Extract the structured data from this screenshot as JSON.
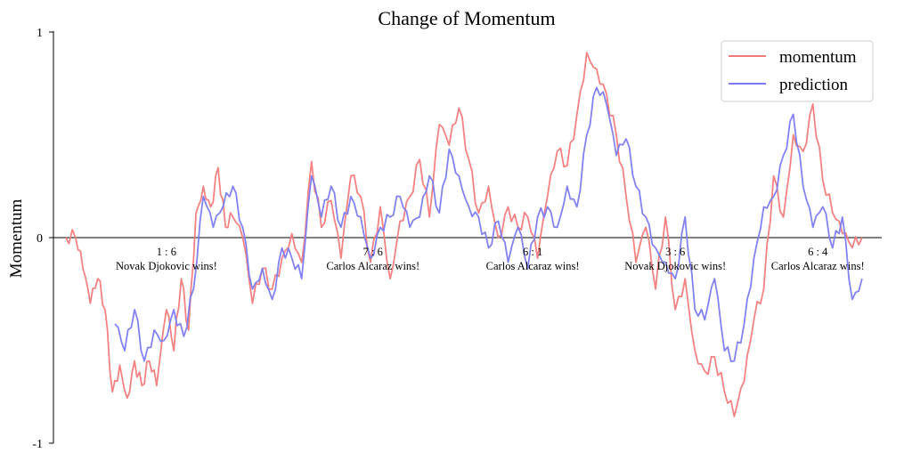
{
  "chart_data": {
    "type": "line",
    "title": "Change of Momentum",
    "xlabel": "",
    "ylabel": "Momentum",
    "ylim": [
      -1,
      1
    ],
    "xlim": [
      -5,
      332
    ],
    "y_ticks": [
      "1",
      "0",
      "-1"
    ],
    "grid": false,
    "legend_position": "top-right",
    "colors": {
      "momentum": "#f47b7b",
      "prediction": "#7b7bf4",
      "axis": "#000000"
    },
    "series": [
      {
        "name": "momentum",
        "x": [
          0,
          4,
          7,
          10,
          13,
          16,
          19,
          22,
          25,
          28,
          31,
          34,
          37,
          41,
          44,
          47,
          50,
          53,
          56,
          59,
          62,
          65,
          68,
          72,
          76,
          80,
          84,
          88,
          92,
          96,
          100,
          104,
          108,
          112,
          116,
          120,
          124,
          128,
          132,
          136,
          140,
          144,
          148,
          152,
          156,
          160,
          164,
          168,
          172,
          176,
          180,
          184,
          188,
          192,
          196,
          200,
          204,
          208,
          212,
          216,
          220,
          224,
          228,
          232,
          236,
          240,
          244,
          248,
          252,
          256,
          260,
          264,
          268,
          272,
          276,
          280,
          284,
          288,
          292,
          296,
          300,
          304,
          308,
          312,
          316,
          320,
          324
        ],
        "values": [
          0.0,
          0.0,
          -0.15,
          -0.32,
          -0.2,
          -0.35,
          -0.75,
          -0.62,
          -0.78,
          -0.6,
          -0.72,
          -0.6,
          -0.72,
          -0.35,
          -0.55,
          -0.2,
          -0.45,
          0.12,
          0.25,
          0.15,
          0.34,
          0.05,
          0.1,
          0.0,
          -0.32,
          -0.15,
          -0.25,
          -0.1,
          0.02,
          -0.12,
          0.37,
          0.05,
          0.18,
          -0.1,
          0.3,
          0.2,
          -0.12,
          0.15,
          -0.2,
          0.08,
          0.2,
          0.38,
          0.1,
          0.55,
          0.45,
          0.63,
          0.38,
          0.12,
          0.25,
          0.0,
          0.15,
          0.05,
          0.1,
          -0.1,
          0.2,
          0.42,
          0.35,
          0.6,
          0.9,
          0.82,
          0.7,
          0.5,
          0.2,
          -0.12,
          0.05,
          -0.25,
          0.1,
          -0.35,
          -0.2,
          -0.55,
          -0.65,
          -0.58,
          -0.75,
          -0.87,
          -0.7,
          -0.4,
          -0.25,
          0.3,
          0.1,
          0.5,
          0.42,
          0.65,
          0.28,
          0.12,
          0.02,
          -0.05,
          0.0
        ]
      },
      {
        "name": "prediction",
        "x": [
          20,
          24,
          28,
          32,
          36,
          40,
          44,
          48,
          52,
          56,
          60,
          64,
          68,
          72,
          76,
          80,
          84,
          88,
          92,
          96,
          100,
          104,
          108,
          112,
          116,
          120,
          124,
          128,
          132,
          136,
          140,
          144,
          148,
          152,
          156,
          160,
          164,
          168,
          172,
          176,
          180,
          184,
          188,
          192,
          196,
          200,
          204,
          208,
          212,
          216,
          220,
          224,
          228,
          232,
          236,
          240,
          244,
          248,
          252,
          256,
          260,
          264,
          268,
          272,
          276,
          280,
          284,
          288,
          292,
          296,
          300,
          304,
          308,
          312,
          316,
          320,
          324
        ],
        "values": [
          -0.42,
          -0.55,
          -0.35,
          -0.6,
          -0.45,
          -0.5,
          -0.35,
          -0.48,
          -0.25,
          0.2,
          0.05,
          0.15,
          0.25,
          0.05,
          -0.25,
          -0.15,
          -0.3,
          -0.05,
          -0.1,
          -0.2,
          0.3,
          0.1,
          0.25,
          0.05,
          0.2,
          0.1,
          -0.1,
          0.05,
          0.1,
          0.2,
          0.05,
          0.1,
          0.3,
          0.12,
          0.43,
          0.3,
          0.15,
          0.1,
          -0.05,
          0.08,
          -0.12,
          0.05,
          -0.15,
          0.1,
          0.15,
          0.05,
          0.25,
          0.15,
          0.5,
          0.73,
          0.65,
          0.4,
          0.48,
          0.25,
          0.1,
          -0.05,
          -0.12,
          -0.2,
          0.1,
          -0.35,
          -0.4,
          -0.2,
          -0.55,
          -0.6,
          -0.42,
          -0.1,
          0.15,
          0.2,
          0.4,
          0.6,
          0.25,
          0.05,
          0.15,
          -0.05,
          0.1,
          -0.3,
          -0.2
        ]
      }
    ],
    "annotations": [
      {
        "x": 41,
        "score": "1 : 6",
        "text": "Novak Djokovic wins!"
      },
      {
        "x": 125,
        "score": "7 : 6",
        "text": "Carlos Alcaraz wins!"
      },
      {
        "x": 190,
        "score": "6 : 1",
        "text": "Carlos Alcaraz wins!"
      },
      {
        "x": 248,
        "score": "3 : 6",
        "text": "Novak Djokovic wins!"
      },
      {
        "x": 306,
        "score": "6 : 4",
        "text": "Carlos Alcaraz wins!"
      }
    ]
  }
}
